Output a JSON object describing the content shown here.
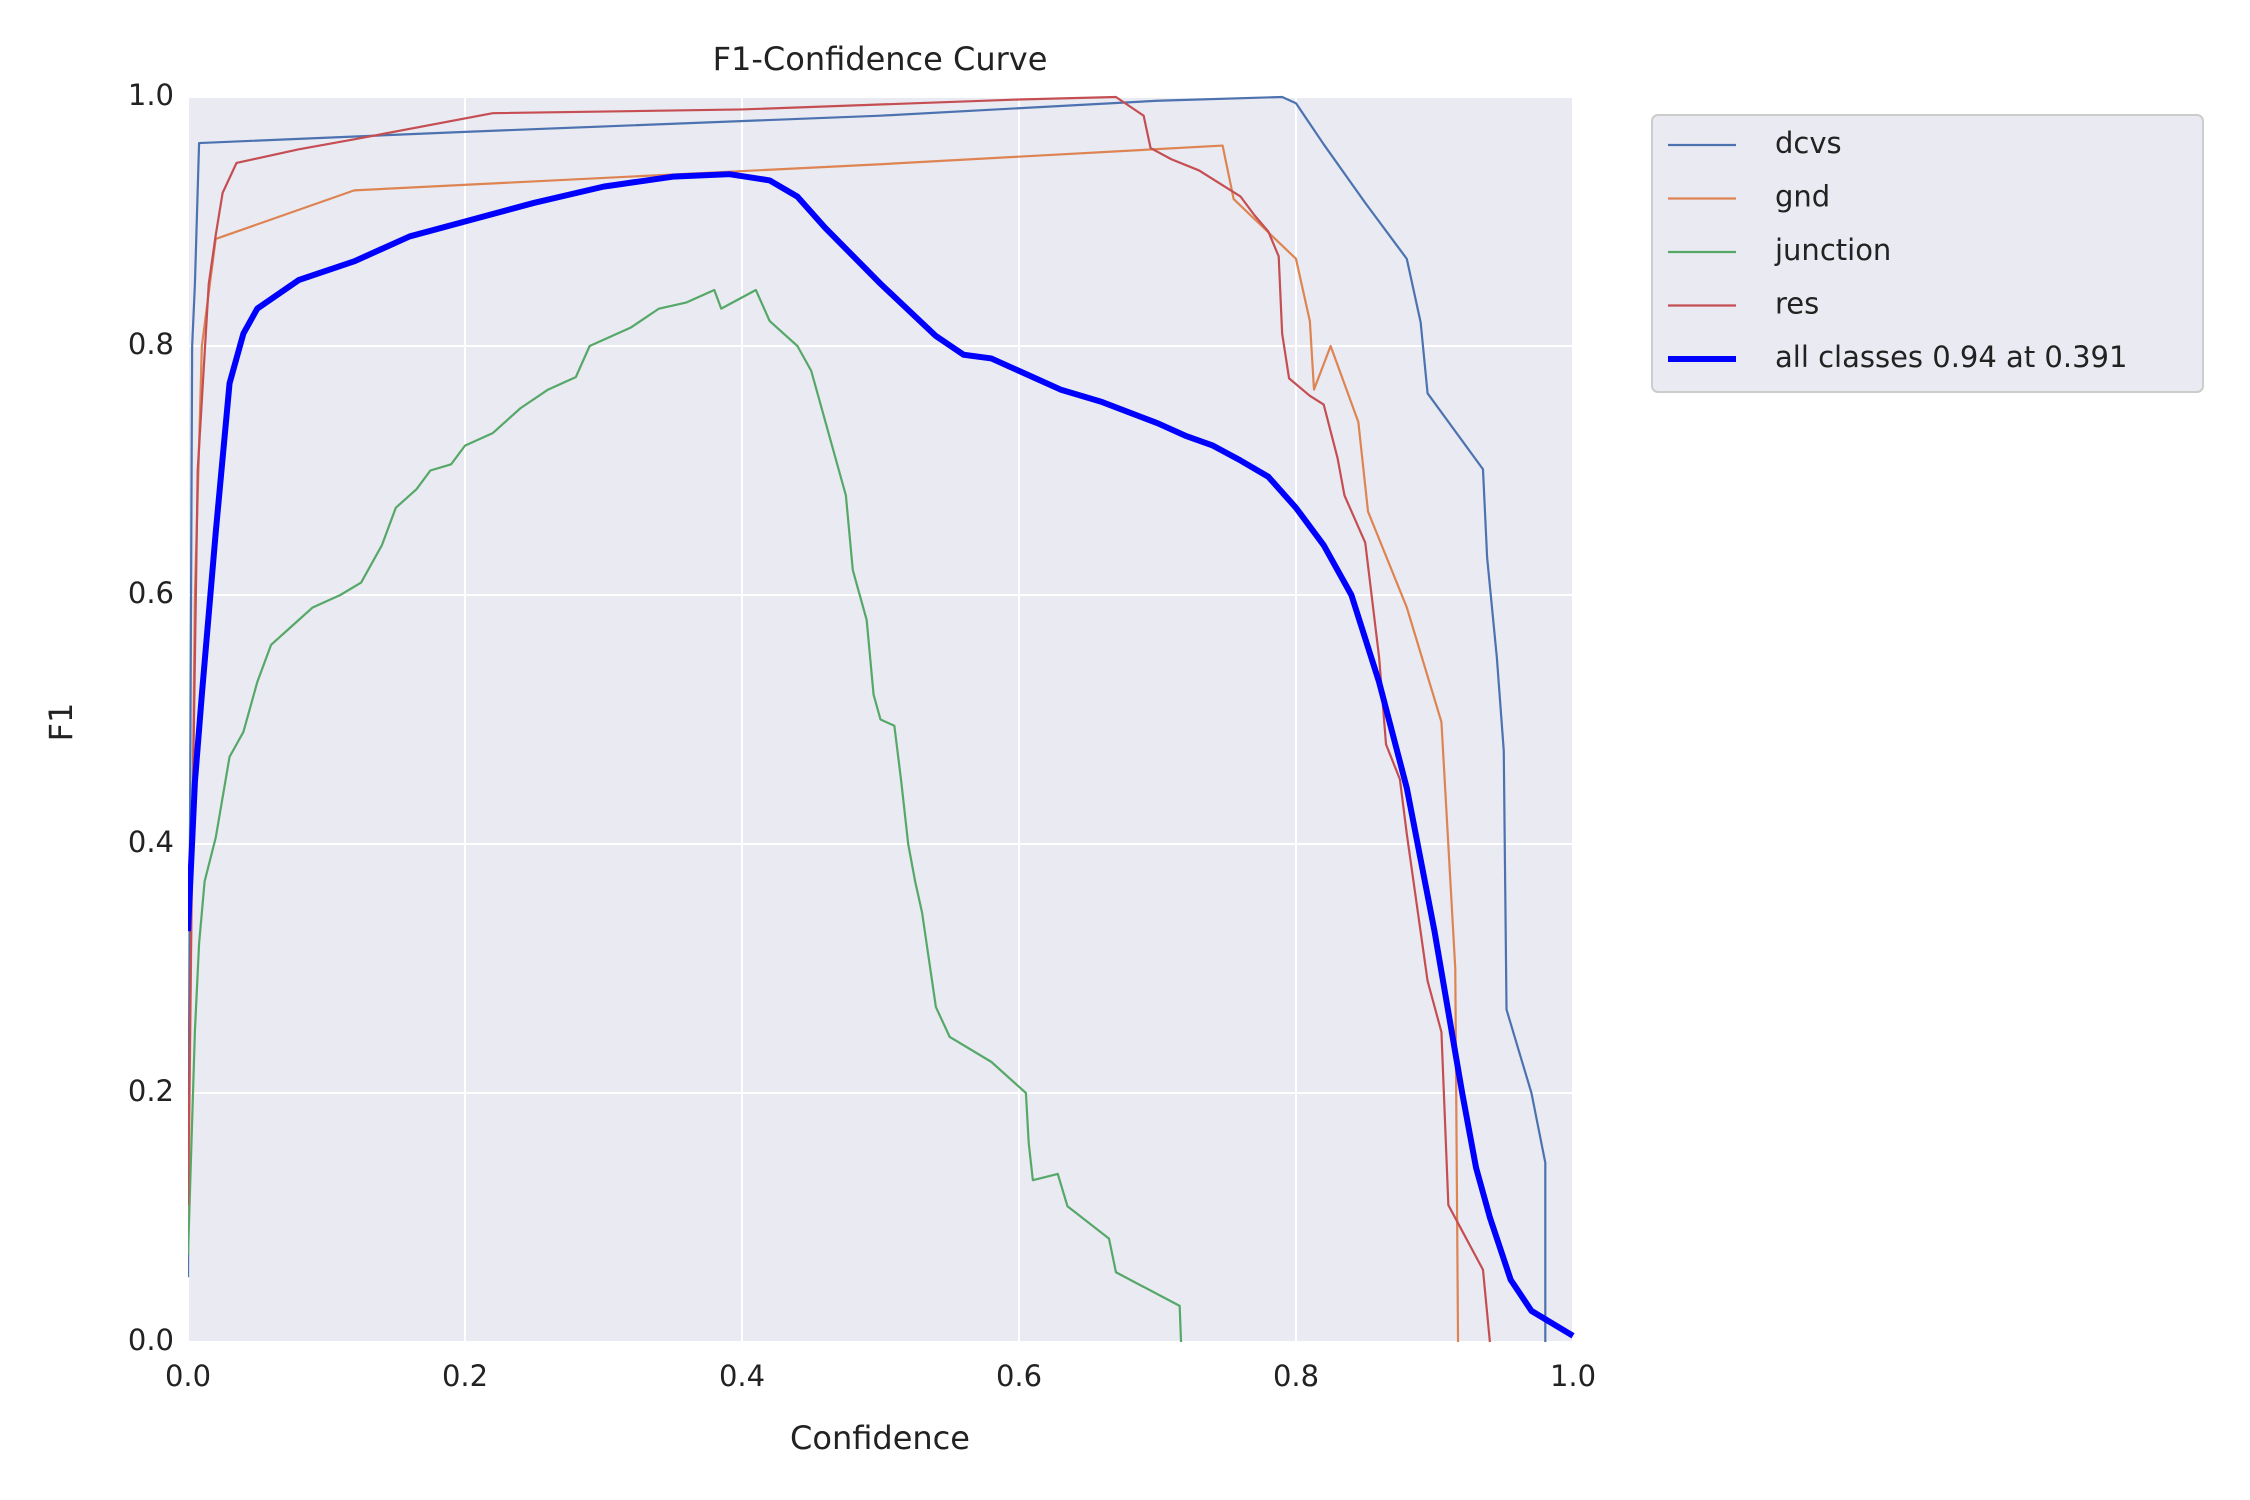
{
  "chart_data": {
    "type": "line",
    "title": "F1-Confidence Curve",
    "xlabel": "Confidence",
    "ylabel": "F1",
    "xlim": [
      0,
      1
    ],
    "ylim": [
      0,
      1
    ],
    "xticks": [
      {
        "value": 0,
        "label": "0.0"
      },
      0.2,
      0.4,
      0.6,
      0.8,
      {
        "value": 1,
        "label": "1.0"
      }
    ],
    "yticks": [
      {
        "value": 0,
        "label": "0.0"
      },
      0.2,
      0.4,
      0.6,
      0.8,
      {
        "value": 1,
        "label": "1.0"
      }
    ],
    "grid": true,
    "legend": "outside-upper-right",
    "series": [
      {
        "name": "dcvs",
        "color": "#4c72b0",
        "linewidth": 2.2,
        "x": [
          0,
          0.003,
          0.005,
          0.008,
          0.2,
          0.5,
          0.7,
          0.79,
          0.8,
          0.82,
          0.85,
          0.88,
          0.89,
          0.895,
          0.935,
          0.938,
          0.945,
          0.95,
          0.952,
          0.97,
          0.98,
          0.98
        ],
        "values": [
          0.052,
          0.8,
          0.85,
          0.963,
          0.972,
          0.985,
          0.997,
          1.0,
          0.995,
          0.962,
          0.915,
          0.87,
          0.819,
          0.762,
          0.701,
          0.63,
          0.55,
          0.475,
          0.267,
          0.2,
          0.144,
          0.0
        ]
      },
      {
        "name": "gnd",
        "color": "#dd8452",
        "linewidth": 2.2,
        "x": [
          0,
          0.005,
          0.01,
          0.02,
          0.12,
          0.3,
          0.5,
          0.747,
          0.755,
          0.8,
          0.81,
          0.813,
          0.825,
          0.845,
          0.852,
          0.88,
          0.905,
          0.915,
          0.917
        ],
        "values": [
          0.08,
          0.6,
          0.8,
          0.886,
          0.925,
          0.935,
          0.946,
          0.961,
          0.918,
          0.87,
          0.82,
          0.765,
          0.8,
          0.739,
          0.667,
          0.59,
          0.498,
          0.3,
          0.0
        ]
      },
      {
        "name": "junction",
        "color": "#55a868",
        "linewidth": 2.2,
        "x": [
          0,
          0.005,
          0.008,
          0.012,
          0.02,
          0.03,
          0.04,
          0.05,
          0.06,
          0.075,
          0.09,
          0.11,
          0.125,
          0.14,
          0.15,
          0.165,
          0.175,
          0.19,
          0.2,
          0.22,
          0.24,
          0.26,
          0.28,
          0.29,
          0.32,
          0.34,
          0.36,
          0.38,
          0.385,
          0.41,
          0.42,
          0.44,
          0.45,
          0.46,
          0.47,
          0.475,
          0.48,
          0.49,
          0.495,
          0.5,
          0.51,
          0.515,
          0.52,
          0.525,
          0.53,
          0.54,
          0.55,
          0.58,
          0.605,
          0.607,
          0.61,
          0.628,
          0.635,
          0.665,
          0.67,
          0.716,
          0.717
        ],
        "values": [
          0.07,
          0.25,
          0.32,
          0.37,
          0.405,
          0.47,
          0.49,
          0.53,
          0.56,
          0.575,
          0.59,
          0.6,
          0.61,
          0.64,
          0.67,
          0.685,
          0.7,
          0.705,
          0.72,
          0.73,
          0.75,
          0.765,
          0.775,
          0.8,
          0.815,
          0.83,
          0.835,
          0.845,
          0.83,
          0.845,
          0.82,
          0.8,
          0.78,
          0.74,
          0.7,
          0.68,
          0.62,
          0.58,
          0.52,
          0.5,
          0.495,
          0.45,
          0.4,
          0.37,
          0.345,
          0.269,
          0.245,
          0.225,
          0.2,
          0.16,
          0.13,
          0.135,
          0.109,
          0.083,
          0.056,
          0.029,
          0.0
        ]
      },
      {
        "name": "res",
        "color": "#c44e52",
        "linewidth": 2.2,
        "x": [
          0,
          0.003,
          0.007,
          0.015,
          0.02,
          0.025,
          0.035,
          0.08,
          0.12,
          0.22,
          0.4,
          0.6,
          0.67,
          0.69,
          0.695,
          0.71,
          0.73,
          0.76,
          0.77,
          0.78,
          0.7875,
          0.79,
          0.795,
          0.81,
          0.82,
          0.83,
          0.835,
          0.85,
          0.86,
          0.865,
          0.875,
          0.88,
          0.895,
          0.905,
          0.91,
          0.935,
          0.94
        ],
        "values": [
          0.11,
          0.4,
          0.7,
          0.85,
          0.889,
          0.923,
          0.947,
          0.958,
          0.966,
          0.987,
          0.99,
          0.998,
          1.0,
          0.985,
          0.959,
          0.95,
          0.941,
          0.92,
          0.905,
          0.892,
          0.872,
          0.81,
          0.774,
          0.76,
          0.753,
          0.71,
          0.68,
          0.642,
          0.55,
          0.48,
          0.452,
          0.408,
          0.29,
          0.249,
          0.11,
          0.058,
          0.0
        ]
      },
      {
        "name": "all classes 0.94 at 0.391",
        "color": "#0000ff",
        "linewidth": 6,
        "x": [
          0,
          0.005,
          0.01,
          0.02,
          0.03,
          0.04,
          0.05,
          0.08,
          0.12,
          0.16,
          0.2,
          0.25,
          0.3,
          0.35,
          0.391,
          0.42,
          0.44,
          0.46,
          0.5,
          0.54,
          0.56,
          0.58,
          0.6,
          0.63,
          0.66,
          0.7,
          0.72,
          0.74,
          0.76,
          0.78,
          0.8,
          0.82,
          0.84,
          0.86,
          0.88,
          0.9,
          0.92,
          0.93,
          0.94,
          0.955,
          0.97,
          1.0
        ],
        "values": [
          0.33,
          0.45,
          0.52,
          0.65,
          0.77,
          0.81,
          0.83,
          0.853,
          0.868,
          0.888,
          0.9,
          0.915,
          0.928,
          0.936,
          0.938,
          0.933,
          0.92,
          0.895,
          0.85,
          0.808,
          0.793,
          0.79,
          0.78,
          0.765,
          0.755,
          0.738,
          0.728,
          0.72,
          0.708,
          0.695,
          0.67,
          0.64,
          0.6,
          0.53,
          0.445,
          0.33,
          0.2,
          0.14,
          0.1,
          0.05,
          0.025,
          0.005
        ]
      }
    ]
  }
}
